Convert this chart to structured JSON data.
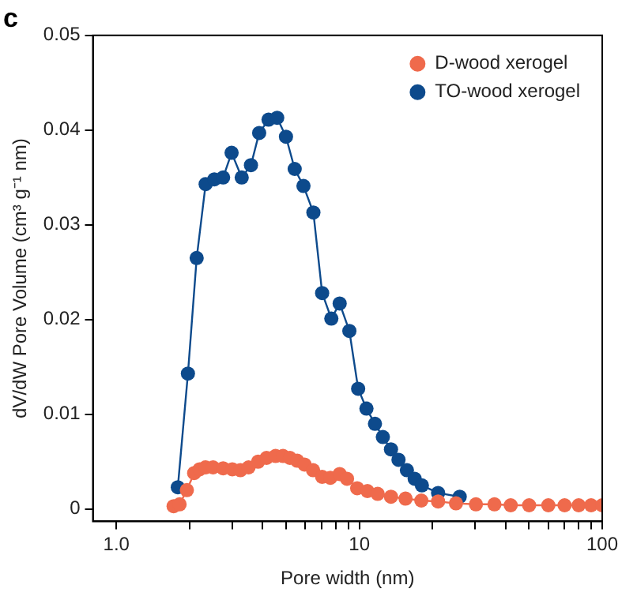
{
  "chart_data": {
    "type": "line",
    "title": "c",
    "xlabel": "Pore width (nm)",
    "ylabel": "dV/dW Pore Volume (cm³ g⁻¹ nm)",
    "log": "x",
    "xlim": [
      0.8,
      100
    ],
    "ylim": [
      -0.0013,
      0.05
    ],
    "xticks": [
      {
        "value": 1,
        "label": "1.0"
      },
      {
        "value": 2,
        "label": null
      },
      {
        "value": 3,
        "label": null
      },
      {
        "value": 4,
        "label": null
      },
      {
        "value": 5,
        "label": null
      },
      {
        "value": 6,
        "label": null
      },
      {
        "value": 7,
        "label": null
      },
      {
        "value": 8,
        "label": null
      },
      {
        "value": 9,
        "label": null
      },
      10,
      {
        "value": 20,
        "label": null
      },
      {
        "value": 30,
        "label": null
      },
      {
        "value": 40,
        "label": null
      },
      {
        "value": 50,
        "label": null
      },
      {
        "value": 60,
        "label": null
      },
      {
        "value": 70,
        "label": null
      },
      {
        "value": 80,
        "label": null
      },
      {
        "value": 90,
        "label": null
      },
      100
    ],
    "yticks": [
      0,
      0.01,
      0.02,
      0.03,
      0.04,
      0.05
    ],
    "grid": false,
    "legend": "top right",
    "marker": "circle",
    "line_style": "solid",
    "series": [
      {
        "name": "D-wood xerogel",
        "color": "#ef6a4c",
        "x": [
          1.72,
          1.82,
          1.95,
          2.09,
          2.2,
          2.33,
          2.5,
          2.75,
          3.0,
          3.24,
          3.5,
          3.83,
          4.15,
          4.52,
          4.85,
          5.18,
          5.55,
          5.95,
          6.45,
          7.03,
          7.6,
          8.3,
          8.9,
          9.8,
          10.8,
          11.9,
          13.5,
          15.5,
          18,
          21.1,
          25,
          30.2,
          36,
          42,
          50,
          60,
          70,
          80,
          90,
          100
        ],
        "values": [
          0.0003,
          0.0005,
          0.002,
          0.0038,
          0.0042,
          0.0044,
          0.0044,
          0.0043,
          0.0042,
          0.0041,
          0.0044,
          0.005,
          0.0054,
          0.0056,
          0.0056,
          0.0054,
          0.0051,
          0.0047,
          0.0041,
          0.0034,
          0.0033,
          0.0037,
          0.0032,
          0.0022,
          0.0019,
          0.0016,
          0.0013,
          0.0011,
          0.0009,
          0.0008,
          0.0006,
          0.0005,
          0.0005,
          0.0004,
          0.0004,
          0.0004,
          0.0004,
          0.0004,
          0.0004,
          0.0004
        ]
      },
      {
        "name": "TO-wood xerogel",
        "color": "#0d4a8c",
        "x": [
          1.79,
          1.97,
          2.14,
          2.33,
          2.53,
          2.75,
          2.98,
          3.28,
          3.58,
          3.87,
          4.23,
          4.59,
          4.99,
          5.42,
          5.89,
          6.47,
          7.03,
          7.67,
          8.3,
          9.1,
          9.89,
          10.7,
          11.6,
          12.5,
          13.5,
          14.5,
          15.7,
          16.9,
          18.1,
          21.1,
          25.9
        ],
        "values": [
          0.0023,
          0.0143,
          0.0265,
          0.0343,
          0.0348,
          0.035,
          0.0376,
          0.035,
          0.0363,
          0.0397,
          0.0411,
          0.0413,
          0.0393,
          0.0359,
          0.0341,
          0.0313,
          0.0228,
          0.0201,
          0.0217,
          0.0188,
          0.0127,
          0.0106,
          0.009,
          0.0076,
          0.0063,
          0.0052,
          0.0041,
          0.0032,
          0.0025,
          0.0017,
          0.0013
        ]
      }
    ]
  }
}
